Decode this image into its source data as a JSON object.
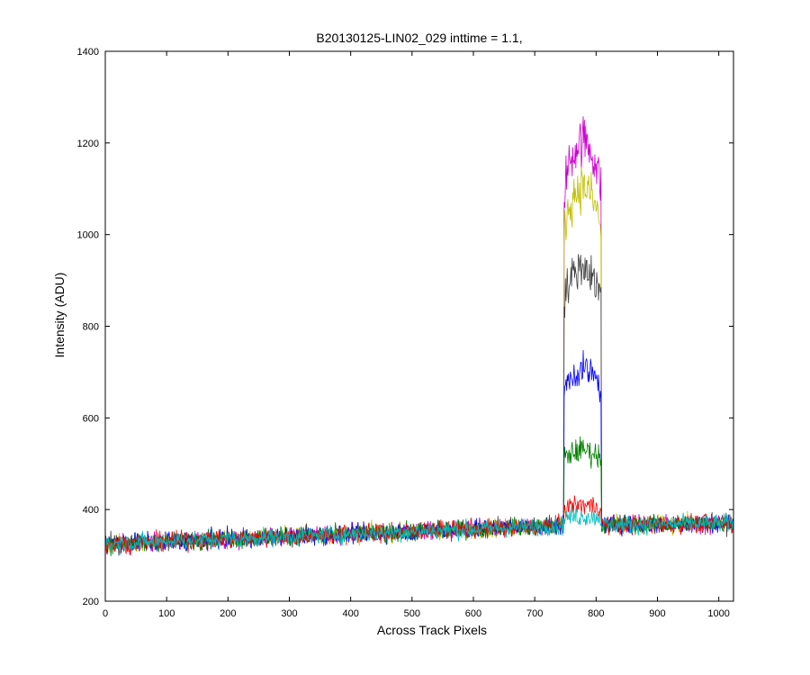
{
  "chart_data": {
    "type": "line",
    "title": "B20130125-LIN02_029 inttime = 1.1,",
    "xlabel": "Across Track Pixels",
    "ylabel": "Intensity (ADU)",
    "xlim": [
      0,
      1024
    ],
    "ylim": [
      200,
      1400
    ],
    "xticks": [
      0,
      100,
      200,
      300,
      400,
      500,
      600,
      700,
      800,
      900,
      1000
    ],
    "yticks": [
      200,
      400,
      600,
      800,
      1000,
      1200,
      1400
    ],
    "grid": false,
    "legend": "none",
    "pulse": {
      "x_start": 748,
      "x_end": 808
    },
    "background_trend": {
      "x": [
        0,
        740,
        1024
      ],
      "y": [
        325,
        365,
        370
      ]
    },
    "noise_amplitude": 18,
    "series": [
      {
        "color": "#cc00cc",
        "peak": 1205
      },
      {
        "color": "#bfbf00",
        "peak": 1105
      },
      {
        "color": "#404040",
        "peak": 930
      },
      {
        "color": "#0000ff",
        "peak": 705
      },
      {
        "color": "#008000",
        "peak": 530
      },
      {
        "color": "#ff0000",
        "peak": 410
      },
      {
        "color": "#00bfbf",
        "peak": 385
      }
    ]
  }
}
